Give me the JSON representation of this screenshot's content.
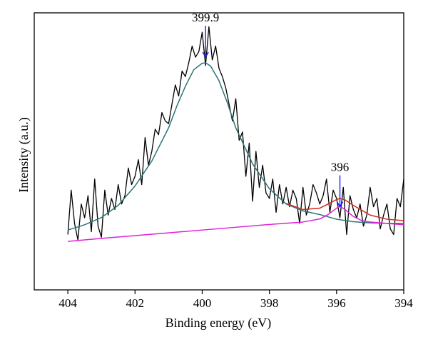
{
  "chart_data": {
    "type": "line",
    "title": "",
    "xlabel": "Binding energy (eV)",
    "ylabel": "Intensity (a.u.)",
    "xlim": [
      405,
      394
    ],
    "xreversed": true,
    "ylim": [
      0,
      100
    ],
    "yticks_labeled": false,
    "xticks": [
      404,
      402,
      400,
      398,
      396,
      394
    ],
    "x_tick_labels": [
      "404",
      "402",
      "400",
      "398",
      "396",
      "394"
    ],
    "grid": false,
    "legend": "none",
    "annotations": [
      {
        "text": "399.9",
        "x": 399.9,
        "y": 84
      },
      {
        "text": "396",
        "x": 395.9,
        "y": 30
      }
    ],
    "series": [
      {
        "role": "raw-data",
        "color": "#000000",
        "x": [
          404.0,
          403.9,
          403.8,
          403.7,
          403.6,
          403.5,
          403.4,
          403.3,
          403.2,
          403.1,
          403.0,
          402.9,
          402.8,
          402.7,
          402.6,
          402.5,
          402.4,
          402.3,
          402.2,
          402.1,
          402.0,
          401.9,
          401.8,
          401.7,
          401.6,
          401.5,
          401.4,
          401.3,
          401.2,
          401.1,
          401.0,
          400.9,
          400.8,
          400.7,
          400.6,
          400.5,
          400.4,
          400.3,
          400.2,
          400.1,
          400.0,
          399.9,
          399.8,
          399.7,
          399.6,
          399.5,
          399.4,
          399.3,
          399.2,
          399.1,
          399.0,
          398.9,
          398.8,
          398.7,
          398.6,
          398.5,
          398.4,
          398.3,
          398.2,
          398.1,
          398.0,
          397.9,
          397.8,
          397.7,
          397.6,
          397.5,
          397.4,
          397.3,
          397.2,
          397.1,
          397.0,
          396.9,
          396.8,
          396.7,
          396.6,
          396.5,
          396.4,
          396.3,
          396.2,
          396.1,
          396.0,
          395.9,
          395.8,
          395.7,
          395.6,
          395.5,
          395.4,
          395.3,
          395.2,
          395.1,
          395.0,
          394.9,
          394.8,
          394.7,
          394.6,
          394.5,
          394.4,
          394.3,
          394.2,
          394.1,
          394.0
        ],
        "values": [
          20,
          36,
          24,
          18,
          31,
          26,
          34,
          21,
          40,
          23,
          19,
          36,
          27,
          33,
          29,
          38,
          31,
          34,
          44,
          38,
          41,
          47,
          38,
          55,
          45,
          50,
          58,
          56,
          64,
          61,
          60,
          67,
          74,
          70,
          79,
          77,
          82,
          88,
          84,
          86,
          93,
          81,
          95,
          83,
          88,
          80,
          77,
          73,
          67,
          61,
          69,
          54,
          57,
          41,
          53,
          32,
          50,
          37,
          45,
          35,
          33,
          40,
          28,
          38,
          31,
          37,
          30,
          36,
          33,
          24,
          37,
          27,
          31,
          38,
          35,
          31,
          34,
          40,
          28,
          36,
          33,
          26,
          37,
          20,
          34,
          29,
          26,
          31,
          23,
          27,
          37,
          30,
          33,
          22,
          27,
          31,
          22,
          20,
          33,
          30,
          40
        ]
      },
      {
        "role": "main-peak-fit",
        "color": "#2b7373",
        "x": [
          404.0,
          403.5,
          403.0,
          402.5,
          402.0,
          401.5,
          401.0,
          400.75,
          400.5,
          400.25,
          400.0,
          399.9,
          399.75,
          399.5,
          399.25,
          399.0,
          398.5,
          398.0,
          397.5,
          397.0,
          396.5,
          396.0,
          395.5,
          395.0,
          394.5,
          394.0
        ],
        "values": [
          21.6,
          23.5,
          26.1,
          30.5,
          37.5,
          46.5,
          58.5,
          66.5,
          73.5,
          79.5,
          81.8,
          82.0,
          80.8,
          75.5,
          67.5,
          58.5,
          45.5,
          36.5,
          31.0,
          28.5,
          27.2,
          25.5,
          24.6,
          24.2,
          24.0,
          24.0
        ]
      },
      {
        "role": "envelope-fit",
        "color": "#d42a1a",
        "x": [
          397.5,
          397.0,
          396.5,
          396.25,
          396.0,
          395.9,
          395.75,
          395.5,
          395.0,
          394.5,
          394.0
        ],
        "values": [
          31.2,
          29.0,
          29.5,
          31.0,
          32.6,
          33.0,
          32.5,
          30.5,
          27.0,
          25.5,
          25.0
        ]
      },
      {
        "role": "minor-peak-plus-baseline",
        "color": "#e020d8",
        "x": [
          404.0,
          403.0,
          402.0,
          401.0,
          400.0,
          399.0,
          398.0,
          397.0,
          396.5,
          396.25,
          396.0,
          395.9,
          395.75,
          395.5,
          395.25,
          395.0,
          394.5,
          394.0
        ],
        "values": [
          17.5,
          18.6,
          19.6,
          20.6,
          21.6,
          22.6,
          23.6,
          24.5,
          25.6,
          27.2,
          29.5,
          30.2,
          29.0,
          26.5,
          25.0,
          24.5,
          24.0,
          23.5
        ]
      }
    ]
  }
}
